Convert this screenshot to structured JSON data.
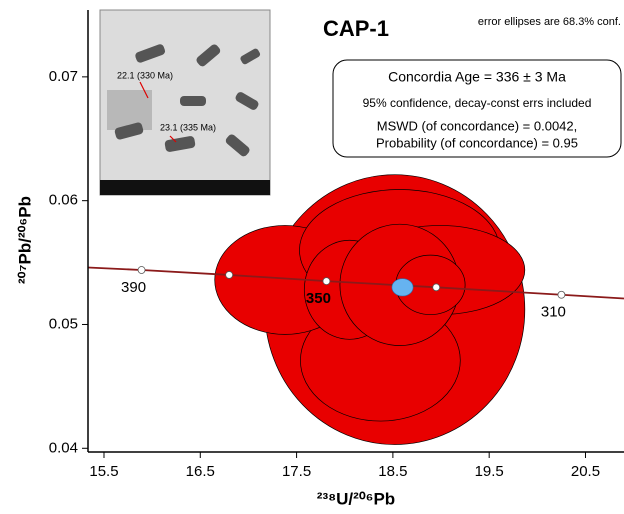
{
  "chart_data": {
    "type": "concordia",
    "title": "CAP-1",
    "note": "error ellipses are 68.3% conf.",
    "result_box": [
      "Concordia Age = 336 ± 3 Ma",
      "95% confidence, decay-const errs included",
      "MSWD (of concordance) = 0.0042,",
      "Probability (of concordance) = 0.95"
    ],
    "x_label": "²³⁸U/²⁰⁶Pb",
    "y_label": "²⁰⁷Pb/²⁰⁶Pb",
    "xlim": [
      15.334,
      20.9
    ],
    "ylim": [
      0.0397,
      0.0754
    ],
    "xticks": [
      15.5,
      16.5,
      17.5,
      18.5,
      19.5,
      20.5
    ],
    "yticks": [
      0.04,
      0.05,
      0.06,
      0.07
    ],
    "ellipse_color": "#e80000",
    "ellipses": [
      {
        "x": 18.52,
        "y": 0.0512,
        "rx": 1.35,
        "ry": 0.0109
      },
      {
        "x": 18.37,
        "y": 0.0471,
        "rx": 0.83,
        "ry": 0.0049
      },
      {
        "x": 17.38,
        "y": 0.0536,
        "rx": 0.73,
        "ry": 0.0044
      },
      {
        "x": 18.57,
        "y": 0.056,
        "rx": 1.04,
        "ry": 0.0049
      },
      {
        "x": 18.05,
        "y": 0.0528,
        "rx": 0.47,
        "ry": 0.004
      },
      {
        "x": 18.99,
        "y": 0.0544,
        "rx": 0.88,
        "ry": 0.0036
      },
      {
        "x": 18.57,
        "y": 0.0532,
        "rx": 0.62,
        "ry": 0.0049
      },
      {
        "x": 18.89,
        "y": 0.0532,
        "rx": 0.36,
        "ry": 0.0024
      }
    ],
    "concordia_age_ellipse": {
      "x": 18.6,
      "y": 0.053,
      "rx": 0.11,
      "ry": 0.0007,
      "color": "#66b3f0"
    },
    "concordia_color": "#8b1a1a",
    "concordia": {
      "x": [
        15.334,
        15.89,
        16.8,
        17.81,
        18.95,
        20.25,
        20.9
      ],
      "y": [
        0.0546,
        0.0544,
        0.054,
        0.0535,
        0.053,
        0.0524,
        0.0521
      ]
    },
    "age_points": {
      "x": [
        15.89,
        16.8,
        17.81,
        18.95,
        20.25
      ],
      "y": [
        0.0544,
        0.054,
        0.0535,
        0.053,
        0.0524
      ],
      "labels": [
        390,
        null,
        350,
        null,
        310
      ]
    },
    "inset_labels": [
      "22.1 (330 Ma)",
      "23.1 (335 Ma)"
    ]
  }
}
